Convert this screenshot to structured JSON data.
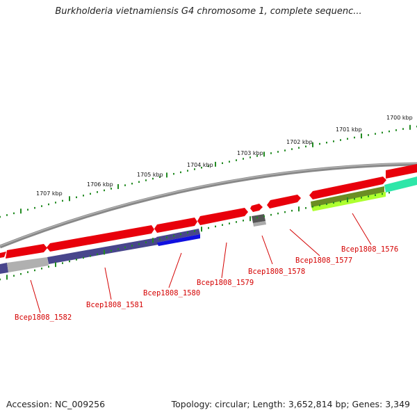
{
  "title": "Burkholderia vietnamiensis G4 chromosome 1, complete sequenc...",
  "footer": {
    "accession": "Accession: NC_009256",
    "summary": "Topology: circular; Length: 3,652,814 bp; Genes: 3,349"
  },
  "scale_labels": [
    "1700 kbp",
    "1701 kbp",
    "1702 kbp",
    "1703 kbp",
    "1704 kbp",
    "1705 kbp",
    "1706 kbp",
    "1707 kbp"
  ],
  "gene_labels": [
    "Bcep1808_1576",
    "Bcep1808_1577",
    "Bcep1808_1578",
    "Bcep1808_1579",
    "Bcep1808_1580",
    "Bcep1808_1581",
    "Bcep1808_1582"
  ],
  "colors": {
    "cds_forward": "#e8000b",
    "cds_reverse": "#48468c",
    "backbone": "#8a8a8a",
    "scale_ticks": "#228b22",
    "label_text": "#d40000",
    "highlight_blue": "#1010e0",
    "highlight_olive": "#6b8e23",
    "highlight_lime": "#adff2f",
    "highlight_teal": "#2ee6a8",
    "gray_block": "#b0b0b0",
    "dark_block": "#555555"
  }
}
